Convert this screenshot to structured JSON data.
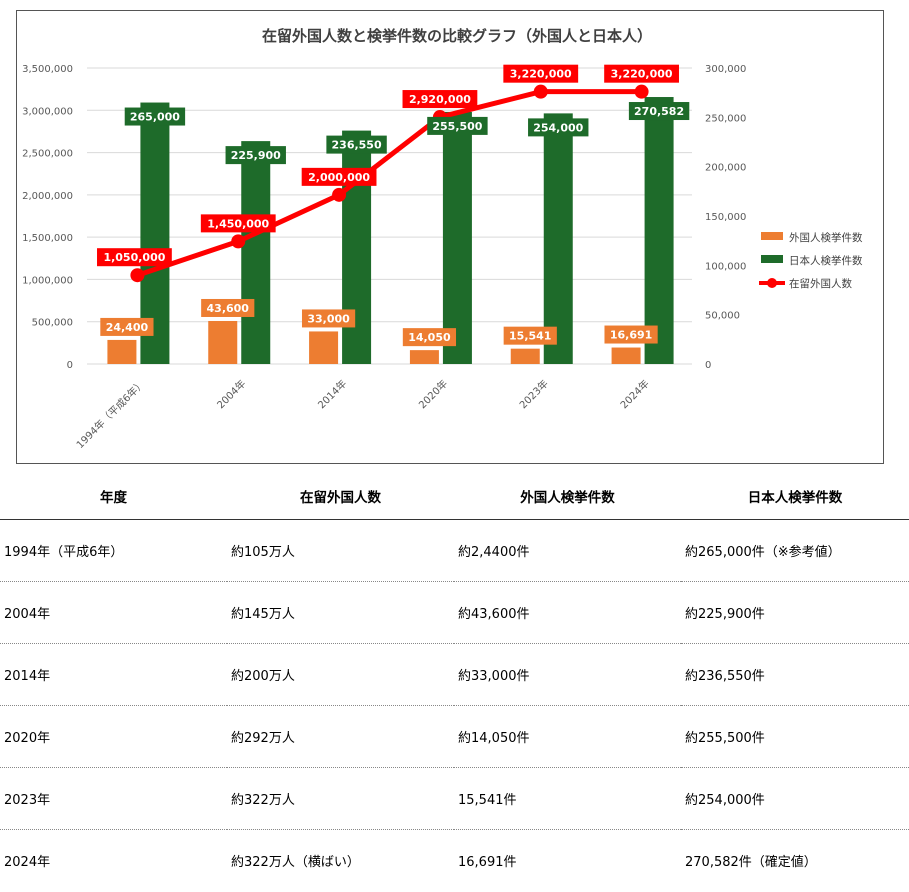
{
  "chart_data": {
    "type": "bar",
    "title": "在留外国人数と検挙件数の比較グラフ（外国人と日本人）",
    "categories": [
      "1994年（平成6年）",
      "2004年",
      "2014年",
      "2020年",
      "2023年",
      "2024年"
    ],
    "series": [
      {
        "name": "外国人検挙件数",
        "type": "bar",
        "axis": "right",
        "color": "#ED7D31",
        "values": [
          24400,
          43600,
          33000,
          14050,
          15541,
          16691
        ],
        "labels": [
          "24,400",
          "43,600",
          "33,000",
          "14,050",
          "15,541",
          "16,691"
        ]
      },
      {
        "name": "日本人検挙件数",
        "type": "bar",
        "axis": "right",
        "color": "#1E6B2A",
        "values": [
          265000,
          225900,
          236550,
          255500,
          254000,
          270582
        ],
        "labels": [
          "265,000",
          "225,900",
          "236,550",
          "255,500",
          "254,000",
          "270,582"
        ]
      },
      {
        "name": "在留外国人数",
        "type": "line",
        "axis": "left",
        "color": "#FF0000",
        "values": [
          1050000,
          1450000,
          2000000,
          2920000,
          3220000,
          3220000
        ],
        "labels": [
          "1,050,000",
          "1,450,000",
          "2,000,000",
          "2,920,000",
          "3,220,000",
          "3,220,000"
        ]
      }
    ],
    "left_axis": {
      "ylim": [
        0,
        3500000
      ],
      "ticks": [
        "0",
        "500,000",
        "1,000,000",
        "1,500,000",
        "2,000,000",
        "2,500,000",
        "3,000,000",
        "3,500,000"
      ]
    },
    "right_axis": {
      "ylim": [
        0,
        300000
      ],
      "ticks": [
        "0",
        "50,000",
        "100,000",
        "150,000",
        "200,000",
        "250,000",
        "300,000"
      ]
    },
    "grid": true,
    "legend_position": "right"
  },
  "table": {
    "headers": [
      "年度",
      "在留外国人数",
      "外国人検挙件数",
      "日本人検挙件数"
    ],
    "rows": [
      [
        "1994年（平成6年）",
        "約105万人",
        "約2,4400件",
        "約265,000件（※参考値）"
      ],
      [
        "2004年",
        "約145万人",
        "約43,600件",
        "約225,900件"
      ],
      [
        "2014年",
        "約200万人",
        "約33,000件",
        "約236,550件"
      ],
      [
        "2020年",
        "約292万人",
        "約14,050件",
        "約255,500件"
      ],
      [
        "2023年",
        "約322万人",
        "15,541件",
        "約254,000件"
      ],
      [
        "2024年",
        "約322万人（横ばい）",
        "16,691件",
        "270,582件（確定値）"
      ]
    ]
  }
}
